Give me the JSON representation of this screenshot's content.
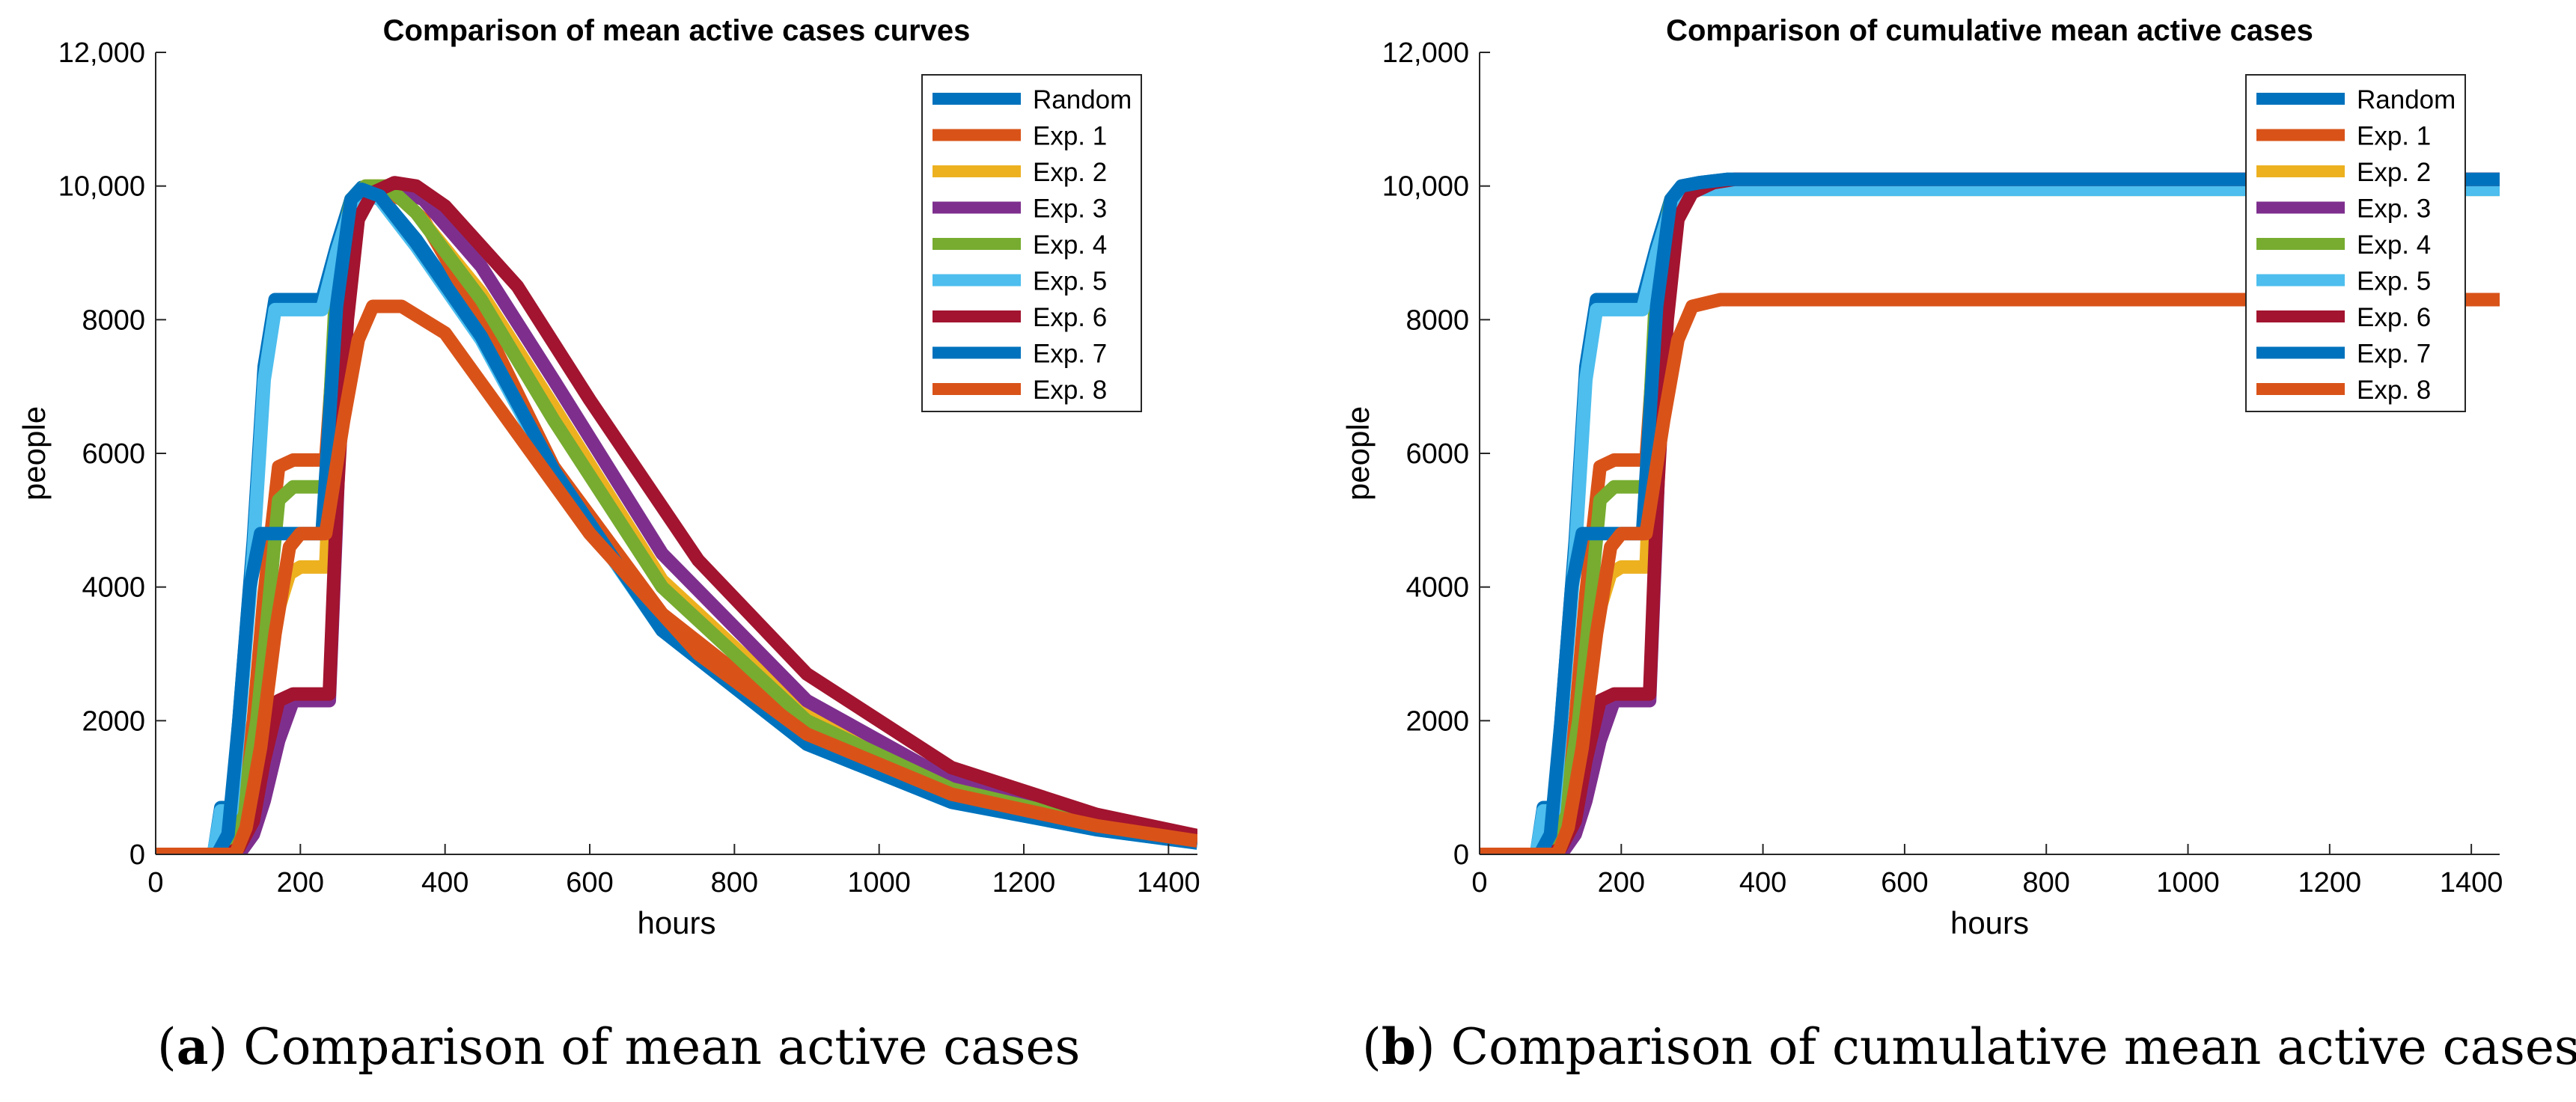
{
  "colors": {
    "random": "#0072BD",
    "exp1": "#D95319",
    "exp2": "#EDB120",
    "exp3": "#7E2F8E",
    "exp4": "#77AC30",
    "exp5": "#4DBEEE",
    "exp6": "#A2142F",
    "exp7": "#0072BD",
    "exp8": "#D95319"
  },
  "captions": {
    "a_letter": "a",
    "a_text": "Comparison of mean active cases",
    "b_letter": "b",
    "b_text": "Comparison of cumulative mean active cases"
  },
  "chart_data": [
    {
      "type": "line",
      "title": "Comparison of mean active cases curves",
      "xlabel": "hours",
      "ylabel": "people",
      "xlim": [
        0,
        1440
      ],
      "ylim": [
        0,
        12000
      ],
      "xticks": [
        0,
        200,
        400,
        600,
        800,
        1000,
        1200,
        1400
      ],
      "yticks": [
        0,
        2000,
        4000,
        6000,
        8000,
        10000,
        12000
      ],
      "ytick_labels": [
        "0",
        "2000",
        "4000",
        "6000",
        "8000",
        "10,000",
        "12,000"
      ],
      "grid": false,
      "legend": "top-right",
      "series": [
        {
          "name": "Random",
          "color_key": "random",
          "x": [
            0,
            80,
            90,
            105,
            115,
            135,
            150,
            165,
            190,
            230,
            250,
            270,
            285,
            310,
            360,
            450,
            550,
            700,
            900,
            1100,
            1300,
            1440
          ],
          "y": [
            0,
            0,
            700,
            700,
            2000,
            4700,
            7300,
            8300,
            8300,
            8300,
            9100,
            9800,
            9980,
            9850,
            9200,
            7800,
            5800,
            3400,
            1700,
            800,
            380,
            180
          ]
        },
        {
          "name": "Exp. 1",
          "color_key": "exp1",
          "x": [
            0,
            100,
            115,
            135,
            150,
            170,
            190,
            235,
            250,
            270,
            290,
            320,
            340,
            370,
            450,
            550,
            700,
            900,
            1100,
            1300,
            1440
          ],
          "y": [
            0,
            0,
            600,
            2000,
            3900,
            5800,
            5900,
            5900,
            8200,
            9600,
            9950,
            9900,
            9800,
            9500,
            8000,
            5800,
            3600,
            1900,
            900,
            450,
            220
          ]
        },
        {
          "name": "Exp. 2",
          "color_key": "exp2",
          "x": [
            0,
            110,
            125,
            145,
            165,
            185,
            200,
            235,
            250,
            270,
            290,
            320,
            360,
            450,
            550,
            700,
            900,
            1100,
            1300,
            1440
          ],
          "y": [
            0,
            0,
            700,
            1800,
            3500,
            4200,
            4300,
            4300,
            8300,
            9700,
            10000,
            10000,
            9600,
            8400,
            6700,
            4100,
            2100,
            1050,
            500,
            230
          ]
        },
        {
          "name": "Exp. 3",
          "color_key": "exp3",
          "x": [
            0,
            115,
            135,
            150,
            170,
            190,
            215,
            240,
            250,
            260,
            275,
            290,
            320,
            370,
            450,
            550,
            700,
            900,
            1100,
            1300,
            1440
          ],
          "y": [
            0,
            0,
            300,
            800,
            1700,
            2300,
            2300,
            2300,
            5000,
            8000,
            9500,
            9900,
            10000,
            9800,
            8800,
            7100,
            4500,
            2300,
            1100,
            520,
            240
          ]
        },
        {
          "name": "Exp. 4",
          "color_key": "exp4",
          "x": [
            0,
            100,
            120,
            140,
            155,
            170,
            190,
            235,
            250,
            270,
            290,
            320,
            360,
            450,
            550,
            700,
            900,
            1100,
            1300,
            1440
          ],
          "y": [
            0,
            0,
            700,
            2000,
            3600,
            5300,
            5500,
            5500,
            8700,
            9800,
            10000,
            10000,
            9600,
            8300,
            6500,
            4000,
            2000,
            980,
            470,
            220
          ]
        },
        {
          "name": "Exp. 5",
          "color_key": "exp5",
          "x": [
            0,
            80,
            90,
            105,
            115,
            135,
            150,
            165,
            190,
            230,
            250,
            270,
            285,
            310,
            360,
            450,
            550,
            700,
            900,
            1100,
            1300,
            1440
          ],
          "y": [
            0,
            0,
            650,
            650,
            1900,
            4500,
            7100,
            8150,
            8150,
            8150,
            9000,
            9700,
            9900,
            9800,
            9100,
            7700,
            5700,
            3350,
            1650,
            780,
            370,
            170
          ]
        },
        {
          "name": "Exp. 6",
          "color_key": "exp6",
          "x": [
            0,
            100,
            115,
            135,
            150,
            170,
            190,
            240,
            250,
            265,
            280,
            300,
            330,
            360,
            400,
            500,
            600,
            750,
            900,
            1100,
            1300,
            1440
          ],
          "y": [
            0,
            0,
            100,
            500,
            1400,
            2300,
            2400,
            2400,
            5200,
            8000,
            9500,
            9900,
            10050,
            10000,
            9700,
            8500,
            6800,
            4400,
            2700,
            1300,
            600,
            280
          ]
        },
        {
          "name": "Exp. 7",
          "color_key": "exp7",
          "x": [
            0,
            85,
            100,
            115,
            130,
            145,
            160,
            185,
            200,
            230,
            250,
            270,
            285,
            310,
            360,
            450,
            550,
            700,
            900,
            1100,
            1300,
            1440
          ],
          "y": [
            0,
            0,
            300,
            2000,
            4000,
            4800,
            4800,
            4800,
            4800,
            4800,
            8200,
            9800,
            9950,
            9850,
            9150,
            7750,
            5750,
            3350,
            1650,
            780,
            370,
            170
          ]
        },
        {
          "name": "Exp. 8",
          "color_key": "exp8",
          "x": [
            0,
            110,
            125,
            145,
            165,
            185,
            200,
            235,
            260,
            280,
            300,
            340,
            400,
            500,
            600,
            750,
            900,
            1100,
            1300,
            1440
          ],
          "y": [
            0,
            0,
            400,
            1600,
            3300,
            4600,
            4800,
            4800,
            6500,
            7700,
            8200,
            8200,
            7800,
            6300,
            4800,
            3000,
            1800,
            900,
            430,
            200
          ]
        }
      ]
    },
    {
      "type": "line",
      "title": "Comparison of cumulative mean active cases",
      "xlabel": "hours",
      "ylabel": "people",
      "xlim": [
        0,
        1440
      ],
      "ylim": [
        0,
        12000
      ],
      "xticks": [
        0,
        200,
        400,
        600,
        800,
        1000,
        1200,
        1400
      ],
      "yticks": [
        0,
        2000,
        4000,
        6000,
        8000,
        10000,
        12000
      ],
      "ytick_labels": [
        "0",
        "2000",
        "4000",
        "6000",
        "8000",
        "10,000",
        "12,000"
      ],
      "grid": false,
      "legend": "top-right",
      "series": [
        {
          "name": "Random",
          "color_key": "random",
          "x": [
            0,
            80,
            90,
            105,
            115,
            135,
            150,
            165,
            190,
            230,
            250,
            270,
            285,
            310,
            350,
            1440
          ],
          "y": [
            0,
            0,
            700,
            700,
            2000,
            4700,
            7300,
            8300,
            8300,
            8300,
            9100,
            9800,
            10000,
            10050,
            10100,
            10100
          ]
        },
        {
          "name": "Exp. 1",
          "color_key": "exp1",
          "x": [
            0,
            100,
            115,
            135,
            150,
            170,
            190,
            235,
            250,
            270,
            290,
            320,
            360,
            1440
          ],
          "y": [
            0,
            0,
            600,
            2000,
            3900,
            5800,
            5900,
            5900,
            8200,
            9600,
            9950,
            10000,
            10000,
            10000
          ]
        },
        {
          "name": "Exp. 2",
          "color_key": "exp2",
          "x": [
            0,
            110,
            125,
            145,
            165,
            185,
            200,
            235,
            250,
            270,
            290,
            320,
            1440
          ],
          "y": [
            0,
            0,
            700,
            1800,
            3500,
            4200,
            4300,
            4300,
            8300,
            9700,
            10000,
            10000,
            10000
          ]
        },
        {
          "name": "Exp. 3",
          "color_key": "exp3",
          "x": [
            0,
            115,
            135,
            150,
            170,
            190,
            215,
            240,
            250,
            260,
            275,
            290,
            320,
            360,
            1440
          ],
          "y": [
            0,
            0,
            300,
            800,
            1700,
            2300,
            2300,
            2300,
            5000,
            8000,
            9500,
            9900,
            10000,
            10100,
            10100
          ]
        },
        {
          "name": "Exp. 4",
          "color_key": "exp4",
          "x": [
            0,
            100,
            120,
            140,
            155,
            170,
            190,
            235,
            250,
            270,
            290,
            320,
            1440
          ],
          "y": [
            0,
            0,
            700,
            2000,
            3600,
            5300,
            5500,
            5500,
            8700,
            9800,
            9950,
            9950,
            9950
          ]
        },
        {
          "name": "Exp. 5",
          "color_key": "exp5",
          "x": [
            0,
            80,
            90,
            105,
            115,
            135,
            150,
            165,
            190,
            230,
            250,
            270,
            285,
            310,
            1440
          ],
          "y": [
            0,
            0,
            650,
            650,
            1900,
            4500,
            7100,
            8150,
            8150,
            8150,
            9000,
            9700,
            9900,
            9950,
            9950
          ]
        },
        {
          "name": "Exp. 6",
          "color_key": "exp6",
          "x": [
            0,
            100,
            115,
            135,
            150,
            170,
            190,
            240,
            250,
            265,
            280,
            300,
            330,
            360,
            1440
          ],
          "y": [
            0,
            0,
            100,
            500,
            1400,
            2300,
            2400,
            2400,
            5200,
            8000,
            9500,
            9900,
            10050,
            10100,
            10100
          ]
        },
        {
          "name": "Exp. 7",
          "color_key": "exp7",
          "x": [
            0,
            85,
            100,
            115,
            130,
            145,
            160,
            185,
            200,
            230,
            250,
            270,
            285,
            310,
            350,
            1440
          ],
          "y": [
            0,
            0,
            300,
            2000,
            4000,
            4800,
            4800,
            4800,
            4800,
            4800,
            8200,
            9800,
            10000,
            10050,
            10100,
            10100
          ]
        },
        {
          "name": "Exp. 8",
          "color_key": "exp8",
          "x": [
            0,
            110,
            125,
            145,
            165,
            185,
            200,
            235,
            260,
            280,
            300,
            340,
            1440
          ],
          "y": [
            0,
            0,
            400,
            1600,
            3300,
            4600,
            4800,
            4800,
            6500,
            7700,
            8200,
            8300,
            8300
          ]
        }
      ]
    }
  ]
}
